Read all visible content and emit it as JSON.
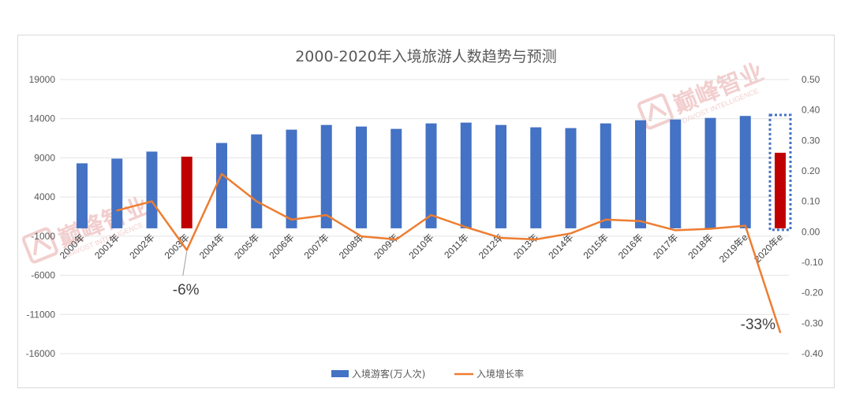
{
  "chart_data": {
    "type": "bar",
    "title": "2000-2020年入境旅游人数趋势与预测",
    "categories": [
      "2000年",
      "2001年",
      "2002年",
      "2003年",
      "2004年",
      "2005年",
      "2006年",
      "2007年",
      "2008年",
      "2009年",
      "2010年",
      "2011年",
      "2012年",
      "2013年",
      "2014年",
      "2015年",
      "2016年",
      "2017年",
      "2018年",
      "2019年e",
      "2020年e"
    ],
    "series": [
      {
        "name": "入境游客(万人次)",
        "kind": "bar",
        "axis": "left",
        "color": "#4472c4",
        "values": [
          8300,
          8900,
          9800,
          9150,
          10900,
          12000,
          12600,
          13200,
          13000,
          12700,
          13400,
          13500,
          13200,
          12900,
          12800,
          13400,
          13800,
          13900,
          14100,
          14350,
          9650
        ]
      },
      {
        "name": "入境增长率",
        "kind": "line",
        "axis": "right",
        "color": "#ed7d31",
        "values": [
          null,
          0.07,
          0.1,
          -0.06,
          0.19,
          0.1,
          0.04,
          0.055,
          -0.015,
          -0.025,
          0.055,
          0.015,
          -0.02,
          -0.025,
          -0.005,
          0.04,
          0.035,
          0.005,
          0.01,
          0.02,
          -0.33
        ]
      }
    ],
    "highlight_color": "#c00000",
    "highlight_categories": [
      "2003年",
      "2020年e"
    ],
    "forecast_box_category": "2020年e",
    "y_left": {
      "min": -16000,
      "max": 19000,
      "ticks": [
        "19000",
        "14000",
        "9000",
        "4000",
        "-1000",
        "-6000",
        "-11000",
        "-16000"
      ]
    },
    "y_right": {
      "min": -0.4,
      "max": 0.5,
      "ticks": [
        "0.50",
        "0.40",
        "0.30",
        "0.20",
        "0.10",
        "0.00",
        "-0.10",
        "-0.20",
        "-0.30",
        "-0.40"
      ]
    },
    "annotations": [
      {
        "text": "-6%",
        "category": "2003年"
      },
      {
        "text": "-33%",
        "category": "2020年e"
      }
    ],
    "grid": true,
    "legend_position": "bottom"
  },
  "watermarks": [
    {
      "text": "巅峰智业",
      "sub": "DAVOST INTELLIGENCE"
    },
    {
      "text": "巅峰智业",
      "sub": "DAVOST INTELLIGENCE"
    }
  ]
}
